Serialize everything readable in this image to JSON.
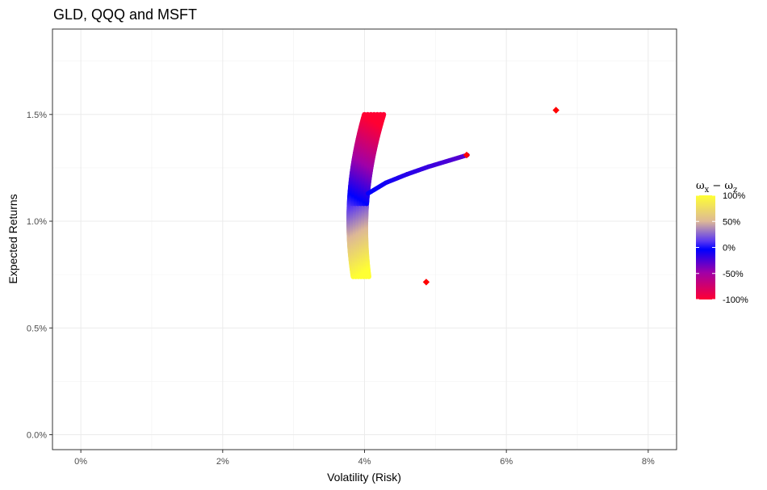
{
  "chart_data": {
    "type": "scatter",
    "title": "GLD, QQQ and MSFT",
    "xlabel": "Volatility (Risk)",
    "ylabel": "Expected Returns",
    "xlim": [
      -0.4,
      8.4
    ],
    "ylim": [
      -0.07,
      1.9
    ],
    "x_ticks": [
      0,
      2,
      4,
      6,
      8
    ],
    "x_tick_labels": [
      "0%",
      "2%",
      "4%",
      "6%",
      "8%"
    ],
    "y_ticks": [
      0.0,
      0.5,
      1.0,
      1.5
    ],
    "y_tick_labels": [
      "0.0%",
      "0.5%",
      "1.0%",
      "1.5%"
    ],
    "grid": true,
    "legend": {
      "title_main": "ω",
      "title_sub1": "x",
      "title_op": " − ω",
      "title_sub2": "z",
      "labels": [
        "100%",
        "50%",
        "0%",
        "-50%",
        "-100%"
      ],
      "values": [
        1.0,
        0.5,
        0.0,
        -0.5,
        -1.0
      ],
      "placement": "right",
      "colors": [
        "#FFFF33",
        "#DDB897",
        "#5A38F2",
        "#0000FF",
        "#A000A8",
        "#FF0033"
      ]
    },
    "frontier_band": {
      "name": "frontier",
      "vertex_x": 3.95,
      "vertex_y": 1.0,
      "min_vol": 3.78,
      "coef": 6.83,
      "thickness_top": 0.27,
      "thickness_bottom": 0.22,
      "y_start": 0.74,
      "y_end": 1.5
    },
    "diff_branch": {
      "name": "diff",
      "x": [
        5.45,
        5.2,
        4.9,
        4.6,
        4.3,
        4.05
      ],
      "y": [
        1.31,
        1.285,
        1.255,
        1.22,
        1.18,
        1.13
      ]
    },
    "points": [
      {
        "name": "GLD",
        "x": 4.87,
        "y": 0.715
      },
      {
        "name": "QQQ",
        "x": 5.44,
        "y": 1.31
      },
      {
        "name": "MSFT",
        "x": 6.7,
        "y": 1.52
      }
    ],
    "point_color": "#FF0000"
  }
}
